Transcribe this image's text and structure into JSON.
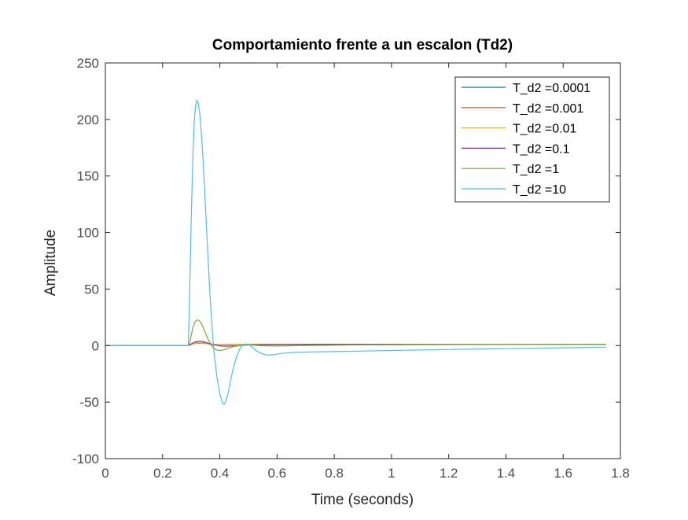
{
  "chart_data": {
    "type": "line",
    "title": "Comportamiento frente a un escalon (Td2)",
    "xlabel": "Time (seconds)",
    "ylabel": "Amplitude",
    "xlim": [
      0,
      1.8
    ],
    "ylim": [
      -100,
      250
    ],
    "xticks": [
      0,
      0.2,
      0.4,
      0.6,
      0.8,
      1,
      1.2,
      1.4,
      1.6,
      1.8
    ],
    "xtick_labels": [
      "0",
      "0.2",
      "0.4",
      "0.6",
      "0.8",
      "1",
      "1.2",
      "1.4",
      "1.6",
      "1.8"
    ],
    "yticks": [
      -100,
      -50,
      0,
      50,
      100,
      150,
      200,
      250
    ],
    "ytick_labels": [
      "-100",
      "-50",
      "0",
      "50",
      "100",
      "150",
      "200",
      "250"
    ],
    "grid": false,
    "legend_position": "top-right",
    "series": [
      {
        "name": "T_d2 =0.0001",
        "color": "#0072BD",
        "x": [
          0,
          0.29,
          0.3,
          0.32,
          0.34,
          0.36,
          0.38,
          0.42,
          0.5,
          0.7,
          1.0,
          1.75
        ],
        "y": [
          0,
          0,
          1.0,
          2.2,
          2.2,
          1.6,
          1.0,
          0.9,
          1.0,
          1.0,
          1.0,
          1.0
        ]
      },
      {
        "name": "T_d2 =0.001",
        "color": "#D95319",
        "x": [
          0,
          0.29,
          0.3,
          0.32,
          0.34,
          0.36,
          0.38,
          0.42,
          0.5,
          0.7,
          1.0,
          1.75
        ],
        "y": [
          0,
          0,
          1.0,
          2.3,
          2.3,
          1.6,
          1.0,
          0.9,
          1.0,
          1.0,
          1.0,
          1.0
        ]
      },
      {
        "name": "T_d2 =0.01",
        "color": "#EDB120",
        "x": [
          0,
          0.29,
          0.3,
          0.32,
          0.34,
          0.36,
          0.38,
          0.42,
          0.5,
          0.7,
          1.0,
          1.75
        ],
        "y": [
          0,
          0,
          1.1,
          2.5,
          2.4,
          1.6,
          1.0,
          0.8,
          1.0,
          1.0,
          1.0,
          1.0
        ]
      },
      {
        "name": "T_d2 =0.1",
        "color": "#7E2F8E",
        "x": [
          0,
          0.29,
          0.3,
          0.31,
          0.32,
          0.33,
          0.34,
          0.35,
          0.36,
          0.38,
          0.4,
          0.42,
          0.46,
          0.5,
          0.6,
          0.8,
          1.2,
          1.75
        ],
        "y": [
          0,
          0,
          1.5,
          2.8,
          3.6,
          3.8,
          3.5,
          2.8,
          2.0,
          0.6,
          -0.3,
          -0.6,
          -0.2,
          0.5,
          0.9,
          1.0,
          1.0,
          1.0
        ]
      },
      {
        "name": "T_d2 =1",
        "color": "#77AC30",
        "x": [
          0,
          0.29,
          0.295,
          0.3,
          0.305,
          0.31,
          0.315,
          0.32,
          0.325,
          0.33,
          0.335,
          0.34,
          0.35,
          0.36,
          0.37,
          0.38,
          0.39,
          0.4,
          0.41,
          0.42,
          0.43,
          0.45,
          0.48,
          0.5,
          0.52,
          0.55,
          0.6,
          0.7,
          0.9,
          1.2,
          1.5,
          1.75
        ],
        "y": [
          0,
          0,
          3,
          9,
          15,
          19,
          21.5,
          22.5,
          22.5,
          21.5,
          19.5,
          17,
          11,
          5,
          0.5,
          -2.5,
          -4.0,
          -4.3,
          -4.0,
          -3.2,
          -2.2,
          -0.8,
          0.3,
          0.6,
          0.3,
          -0.2,
          -0.4,
          0.1,
          0.6,
          0.9,
          1.0,
          1.0
        ]
      },
      {
        "name": "T_d2 =10",
        "color": "#4DBEEE",
        "x": [
          0,
          0.29,
          0.293,
          0.297,
          0.3,
          0.305,
          0.31,
          0.315,
          0.32,
          0.325,
          0.33,
          0.335,
          0.34,
          0.345,
          0.35,
          0.355,
          0.36,
          0.365,
          0.37,
          0.375,
          0.38,
          0.39,
          0.4,
          0.41,
          0.415,
          0.42,
          0.43,
          0.44,
          0.45,
          0.46,
          0.47,
          0.48,
          0.49,
          0.5,
          0.51,
          0.52,
          0.53,
          0.55,
          0.57,
          0.59,
          0.6,
          0.62,
          0.65,
          0.7,
          0.8,
          0.9,
          1.0,
          1.1,
          1.2,
          1.3,
          1.4,
          1.5,
          1.6,
          1.7,
          1.75
        ],
        "y": [
          0,
          0,
          30,
          75,
          110,
          160,
          195,
          212,
          217,
          214,
          205,
          190,
          170,
          148,
          122,
          97,
          72,
          48,
          27,
          9,
          -7,
          -28,
          -43,
          -51,
          -52,
          -50,
          -41,
          -28,
          -17,
          -9,
          -3,
          0.5,
          1.5,
          1.0,
          -0.8,
          -3.0,
          -5.0,
          -7.5,
          -8.5,
          -8.0,
          -7.5,
          -6.8,
          -6.2,
          -5.8,
          -5.3,
          -4.8,
          -4.3,
          -3.9,
          -3.5,
          -3.1,
          -2.7,
          -2.3,
          -2.0,
          -1.6,
          -1.4
        ]
      }
    ]
  }
}
